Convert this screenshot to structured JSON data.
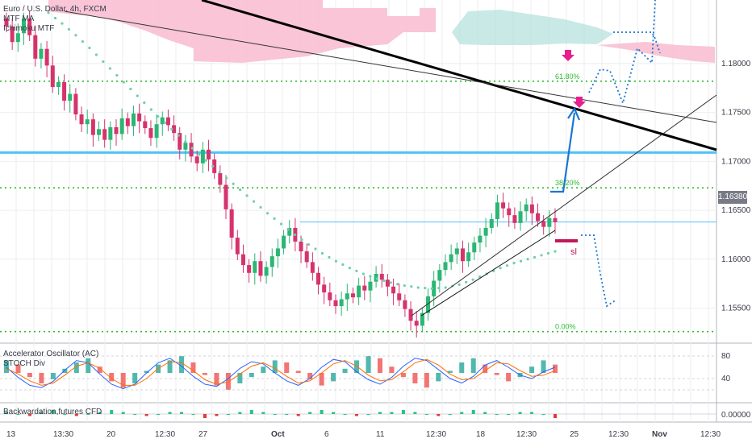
{
  "legend": {
    "symbol_line": "Euro / U.S. Dollar, 4h, FXCM",
    "indicator_1": "MTF MA",
    "indicator_2": "Ichimoku MTF"
  },
  "subpanes": {
    "oscillator_title": "Accelerator Oscillator (AC)",
    "stoch_title": "STOCH Div",
    "backwardation_title": "Backwardation,futures CFD"
  },
  "fib_labels": [
    "61.80%",
    "38.20%",
    "0.00%"
  ],
  "sl_label": "sl",
  "current_price_tag": "1.16380",
  "backwardation_tag": "0.00000",
  "colors": {
    "bull": "#26a69a",
    "bear": "#ef5350",
    "candle_up": "#2bb673",
    "candle_down": "#d6336c",
    "fib": "#2fbb2f",
    "resistance": "#4fc3f7",
    "trend": "#000000",
    "projection": "#1976d2",
    "arrow_marker": "#e91e8c",
    "ma": "#6fcfab",
    "cloud_red": "#f8bbd0",
    "cloud_green": "#b2dfdb"
  },
  "chart_data": {
    "type": "candlestick",
    "x_ticks": [
      "13",
      "13:30",
      "20",
      "12:30",
      "27",
      "Oct",
      "6",
      "11",
      "12:30",
      "18",
      "12:30",
      "25",
      "12:30",
      "Nov",
      "12:30"
    ],
    "price_axis": {
      "ticks": [
        1.18,
        1.175,
        1.17,
        1.165,
        1.16,
        1.155
      ],
      "tick_labels": [
        "1.18000",
        "1.17500",
        "1.17000",
        "1.16500",
        "1.16000",
        "1.15500"
      ],
      "range": [
        1.1515,
        1.1865
      ]
    },
    "oscillator_axis": {
      "ticks": [
        80,
        40
      ],
      "range": [
        0,
        100
      ]
    },
    "backwardation_axis": {
      "ticks": [
        0
      ],
      "tick_labels": [
        "0.00000"
      ]
    },
    "current_price": 1.1638,
    "fib_levels": [
      {
        "label": "61.80%",
        "price": 1.1782
      },
      {
        "label": "38.20%",
        "price": 1.1673
      },
      {
        "label": "0.00%",
        "price": 1.1526
      }
    ],
    "horizontal_resistance": 1.1709,
    "candles_close": [
      1.1838,
      1.1822,
      1.1831,
      1.1846,
      1.1829,
      1.1805,
      1.1815,
      1.1798,
      1.1776,
      1.1781,
      1.1762,
      1.1769,
      1.1748,
      1.1738,
      1.1743,
      1.1727,
      1.1733,
      1.1722,
      1.1735,
      1.1728,
      1.1744,
      1.1736,
      1.1749,
      1.1741,
      1.1734,
      1.1724,
      1.1738,
      1.1745,
      1.1737,
      1.1729,
      1.1712,
      1.1719,
      1.1705,
      1.1698,
      1.1712,
      1.1702,
      1.1688,
      1.1676,
      1.1651,
      1.1622,
      1.1605,
      1.1594,
      1.1586,
      1.1598,
      1.1583,
      1.1592,
      1.1603,
      1.1611,
      1.1624,
      1.1632,
      1.1618,
      1.1608,
      1.1597,
      1.1586,
      1.1574,
      1.1566,
      1.1558,
      1.1552,
      1.1559,
      1.1565,
      1.1561,
      1.1573,
      1.1568,
      1.1577,
      1.1585,
      1.1579,
      1.1572,
      1.1565,
      1.1558,
      1.1549,
      1.1537,
      1.1532,
      1.1545,
      1.1562,
      1.1578,
      1.1589,
      1.1597,
      1.1605,
      1.1611,
      1.1598,
      1.1607,
      1.1617,
      1.1624,
      1.1632,
      1.1641,
      1.1658,
      1.1652,
      1.1645,
      1.1637,
      1.1649,
      1.1656,
      1.1647,
      1.1639,
      1.1633,
      1.1642,
      1.1638
    ],
    "ma_values": [
      1.1852,
      1.1841,
      1.1829,
      1.1816,
      1.1802,
      1.1788,
      1.1774,
      1.176,
      1.1746,
      1.1733,
      1.172,
      1.1707,
      1.1695,
      1.1683,
      1.1671,
      1.1659,
      1.1647,
      1.1636,
      1.1625,
      1.1615,
      1.1606,
      1.1598,
      1.1591,
      1.1585,
      1.158,
      1.1576,
      1.1573,
      1.1571,
      1.157,
      1.1571,
      1.1574,
      1.1579,
      1.1585,
      1.1591,
      1.1596,
      1.16,
      1.1604,
      1.1608
    ],
    "ac_values": [
      0.6,
      0.4,
      -0.2,
      -0.5,
      -0.3,
      0.2,
      0.5,
      0.7,
      0.3,
      -0.4,
      -0.7,
      -0.5,
      0.1,
      0.4,
      0.6,
      0.8,
      0.5,
      -0.1,
      -0.6,
      -0.8,
      -0.5,
      -0.2,
      0.3,
      0.6,
      0.5,
      0.1,
      -0.3,
      -0.6,
      -0.4,
      0.2,
      0.6,
      0.8,
      0.7,
      0.3,
      -0.2,
      -0.5,
      -0.7,
      -0.4,
      0.1,
      0.5,
      0.7,
      0.4,
      -0.1,
      -0.4,
      -0.2,
      0.3,
      0.6,
      0.4
    ],
    "stoch_k": [
      60,
      42,
      28,
      24,
      35,
      55,
      72,
      68,
      48,
      30,
      22,
      30,
      50,
      68,
      76,
      62,
      44,
      30,
      26,
      40,
      58,
      70,
      66,
      50,
      36,
      28,
      40,
      60,
      74,
      70,
      52,
      38,
      30,
      42,
      62,
      76,
      72,
      56,
      40,
      32,
      44,
      64,
      72,
      60,
      46,
      40,
      52,
      60
    ],
    "stoch_d": [
      58,
      48,
      36,
      28,
      32,
      46,
      62,
      68,
      58,
      40,
      28,
      28,
      40,
      58,
      70,
      68,
      54,
      38,
      30,
      34,
      48,
      62,
      68,
      58,
      44,
      32,
      36,
      50,
      66,
      72,
      62,
      46,
      36,
      38,
      52,
      68,
      74,
      64,
      48,
      38,
      40,
      54,
      68,
      66,
      54,
      44,
      46,
      54
    ],
    "backwardation": [
      1,
      0,
      -1,
      1,
      2,
      0,
      -1,
      0,
      1,
      2,
      1,
      0,
      -1,
      0,
      1,
      1,
      0,
      -2,
      -1,
      0,
      1,
      2,
      1,
      0,
      0,
      -1,
      1,
      2,
      1,
      0,
      -1,
      0,
      1,
      1,
      2,
      1,
      0,
      -1,
      0,
      1,
      2,
      1,
      0,
      0,
      1,
      1,
      0,
      -2
    ]
  }
}
